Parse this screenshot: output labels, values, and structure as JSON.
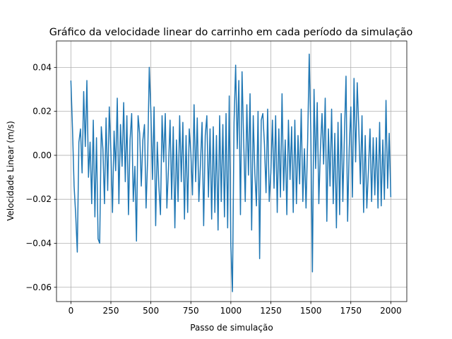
{
  "chart_data": {
    "type": "line",
    "title": "Gráfico da velocidade linear do carrinho em cada período da simulação",
    "xlabel": "Passo de simulação",
    "ylabel": "Velocidade Linear (m/s)",
    "xlim": [
      -90,
      2100
    ],
    "ylim": [
      -0.0665,
      0.052
    ],
    "xticks": [
      0,
      250,
      500,
      750,
      1000,
      1250,
      1500,
      1750,
      2000
    ],
    "yticks": [
      -0.06,
      -0.04,
      -0.02,
      0.0,
      0.02,
      0.04
    ],
    "ytick_labels": [
      "−0.06",
      "−0.04",
      "−0.02",
      "0.00",
      "0.02",
      "0.04"
    ],
    "grid": true,
    "series": [
      {
        "color": "#1f77b4",
        "x": [
          0,
          10,
          20,
          30,
          40,
          50,
          60,
          70,
          80,
          90,
          100,
          110,
          120,
          130,
          140,
          150,
          160,
          170,
          180,
          190,
          200,
          210,
          220,
          230,
          240,
          250,
          260,
          270,
          280,
          290,
          300,
          310,
          320,
          330,
          340,
          350,
          360,
          370,
          380,
          390,
          400,
          410,
          420,
          430,
          440,
          450,
          460,
          470,
          480,
          490,
          500,
          510,
          520,
          530,
          540,
          550,
          560,
          570,
          580,
          590,
          600,
          610,
          620,
          630,
          640,
          650,
          660,
          670,
          680,
          690,
          700,
          710,
          720,
          730,
          740,
          750,
          760,
          770,
          780,
          790,
          800,
          810,
          820,
          830,
          840,
          850,
          860,
          870,
          880,
          890,
          900,
          910,
          920,
          930,
          940,
          950,
          960,
          970,
          980,
          990,
          1000,
          1010,
          1020,
          1030,
          1040,
          1050,
          1060,
          1070,
          1080,
          1090,
          1100,
          1110,
          1120,
          1130,
          1140,
          1150,
          1160,
          1170,
          1180,
          1190,
          1200,
          1210,
          1220,
          1230,
          1240,
          1250,
          1260,
          1270,
          1280,
          1290,
          1300,
          1310,
          1320,
          1330,
          1340,
          1350,
          1360,
          1370,
          1380,
          1390,
          1400,
          1410,
          1420,
          1430,
          1440,
          1450,
          1460,
          1470,
          1480,
          1490,
          1500,
          1510,
          1520,
          1530,
          1540,
          1550,
          1560,
          1570,
          1580,
          1590,
          1600,
          1610,
          1620,
          1630,
          1640,
          1650,
          1660,
          1670,
          1680,
          1690,
          1700,
          1710,
          1720,
          1730,
          1740,
          1750,
          1760,
          1770,
          1780,
          1790,
          1800,
          1810,
          1820,
          1830,
          1840,
          1850,
          1860,
          1870,
          1880,
          1890,
          1900,
          1910,
          1920,
          1930,
          1940,
          1950,
          1960,
          1970,
          1980,
          1990,
          2000
        ],
        "y": [
          0.034,
          0.012,
          -0.014,
          -0.027,
          -0.044,
          0.006,
          0.012,
          -0.008,
          0.029,
          0.004,
          0.034,
          -0.01,
          0.006,
          -0.022,
          0.016,
          -0.028,
          0.008,
          -0.038,
          -0.04,
          0.013,
          0.003,
          -0.022,
          0.017,
          -0.016,
          0.022,
          0.002,
          -0.026,
          0.011,
          -0.007,
          0.026,
          -0.022,
          0.014,
          -0.005,
          0.024,
          -0.012,
          0.018,
          -0.027,
          0.007,
          0.019,
          -0.021,
          -0.005,
          -0.039,
          0.018,
          0.01,
          -0.014,
          0.007,
          0.014,
          -0.024,
          -0.001,
          0.04,
          0.02,
          -0.011,
          0.022,
          -0.032,
          0.006,
          -0.014,
          -0.027,
          0.018,
          -0.003,
          0.019,
          -0.024,
          -0.006,
          0.016,
          -0.02,
          0.013,
          -0.033,
          0.007,
          -0.021,
          0.018,
          -0.012,
          0.015,
          -0.029,
          0.009,
          -0.026,
          0.012,
          0.001,
          -0.018,
          0.023,
          -0.012,
          0.017,
          -0.021,
          -0.004,
          0.015,
          -0.032,
          0.009,
          0.018,
          -0.019,
          0.012,
          -0.029,
          0.013,
          -0.026,
          0.009,
          -0.034,
          0.018,
          -0.021,
          0.014,
          -0.028,
          0.019,
          -0.033,
          0.027,
          -0.041,
          -0.062,
          0.015,
          0.041,
          0.003,
          0.034,
          -0.027,
          0.038,
          0.007,
          -0.021,
          0.023,
          -0.009,
          0.028,
          -0.034,
          0.018,
          -0.008,
          -0.023,
          0.02,
          -0.047,
          0.016,
          0.019,
          0.005,
          -0.017,
          0.021,
          -0.021,
          -0.008,
          0.016,
          -0.015,
          0.018,
          -0.026,
          0.012,
          -0.019,
          0.028,
          -0.016,
          0.007,
          -0.027,
          0.016,
          -0.011,
          0.013,
          -0.026,
          0.016,
          -0.022,
          0.009,
          -0.013,
          0.021,
          -0.021,
          0.003,
          -0.024,
          0.006,
          0.046,
          0.01,
          -0.053,
          0.03,
          -0.006,
          0.024,
          -0.022,
          0.003,
          0.019,
          -0.004,
          0.026,
          -0.03,
          0.012,
          -0.014,
          0.021,
          -0.022,
          0.01,
          -0.033,
          0.015,
          -0.027,
          0.019,
          -0.021,
          0.009,
          0.036,
          -0.03,
          0.003,
          0.022,
          -0.019,
          0.035,
          -0.003,
          0.033,
          0.012,
          -0.013,
          0.018,
          -0.026,
          0.009,
          -0.024,
          -0.007,
          0.012,
          -0.021,
          0.008,
          -0.018,
          0.008,
          -0.024,
          0.015,
          -0.023,
          0.007,
          -0.02,
          0.025,
          -0.015,
          0.01,
          -0.019
        ]
      }
    ]
  }
}
